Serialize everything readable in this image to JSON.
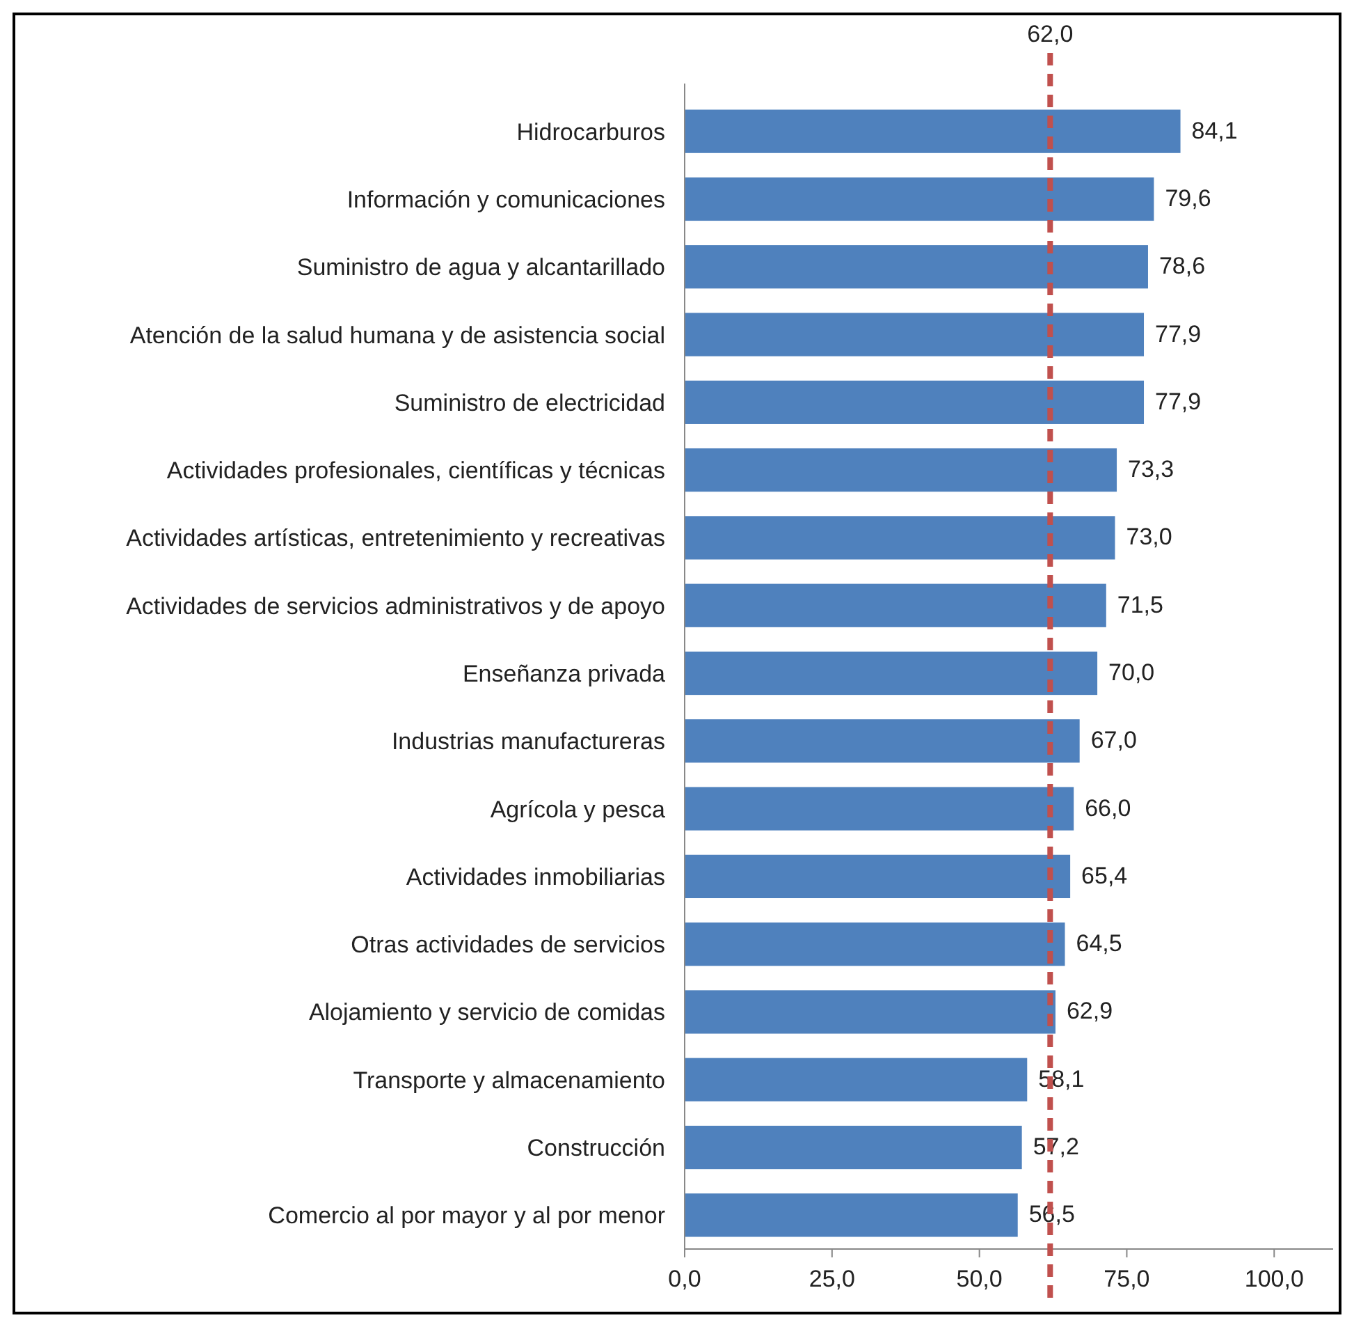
{
  "chart_data": {
    "type": "bar",
    "orientation": "horizontal",
    "categories": [
      "Hidrocarburos",
      "Información y comunicaciones",
      "Suministro de agua y alcantarillado",
      "Atención de la salud humana y de asistencia social",
      "Suministro de electricidad",
      "Actividades profesionales, científicas y técnicas",
      "Actividades artísticas, entretenimiento y recreativas",
      "Actividades de servicios administrativos y de apoyo",
      "Enseñanza privada",
      "Industrias manufactureras",
      "Agrícola y pesca",
      "Actividades inmobiliarias",
      "Otras actividades de servicios",
      "Alojamiento y servicio de comidas",
      "Transporte y almacenamiento",
      "Construcción",
      "Comercio al por mayor y al por menor"
    ],
    "values": [
      84.1,
      79.6,
      78.6,
      77.9,
      77.9,
      73.3,
      73.0,
      71.5,
      70.0,
      67.0,
      66.0,
      65.4,
      64.5,
      62.9,
      58.1,
      57.2,
      56.5
    ],
    "value_labels": [
      "84,1",
      "79,6",
      "78,6",
      "77,9",
      "77,9",
      "73,3",
      "73,0",
      "71,5",
      "70,0",
      "67,0",
      "66,0",
      "65,4",
      "64,5",
      "62,9",
      "58,1",
      "57,2",
      "56,5"
    ],
    "color": "#4f81bd",
    "xlim": [
      0,
      110
    ],
    "xticks": [
      {
        "value": 0,
        "label": "0,0"
      },
      {
        "value": 25,
        "label": "25,0"
      },
      {
        "value": 50,
        "label": "50,0"
      },
      {
        "value": 75,
        "label": "75,0"
      },
      {
        "value": 100,
        "label": "100,0"
      }
    ],
    "ref_lines": [
      {
        "axis": "x",
        "value": 62,
        "label": "62,0",
        "color": "#c0504d",
        "line_style": "dashed"
      }
    ],
    "grid": false
  }
}
